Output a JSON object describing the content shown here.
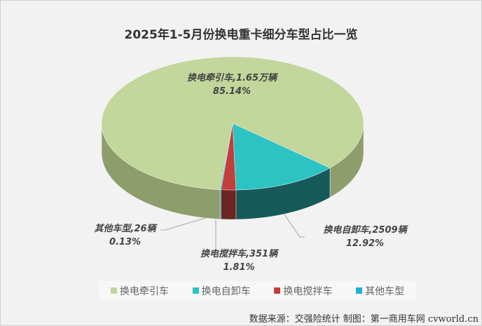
{
  "chart_data": {
    "type": "pie",
    "title": "2025年1-5月份换电重卡细分车型占比一览",
    "slices": [
      {
        "name": "换电牵引车",
        "count_label": "1.65万辆",
        "percent": 85.14,
        "pct_label": "85.14%",
        "color": "#c3d69b",
        "side": "#8e9d6c"
      },
      {
        "name": "换电自卸车",
        "count_label": "2509辆",
        "percent": 12.92,
        "pct_label": "12.92%",
        "color": "#2ec3c3",
        "side": "#17595b"
      },
      {
        "name": "换电搅拌车",
        "count_label": "351辆",
        "percent": 1.81,
        "pct_label": "1.81%",
        "color": "#c0403c",
        "side": "#6e2422"
      },
      {
        "name": "其他车型",
        "count_label": "26辆",
        "percent": 0.13,
        "pct_label": "0.13%",
        "color": "#1fb0e0",
        "side": "#15789a"
      }
    ],
    "legend_position": "bottom"
  },
  "source": "数据来源：交强险统计 制图：第一商用车网 cvworld.cn"
}
